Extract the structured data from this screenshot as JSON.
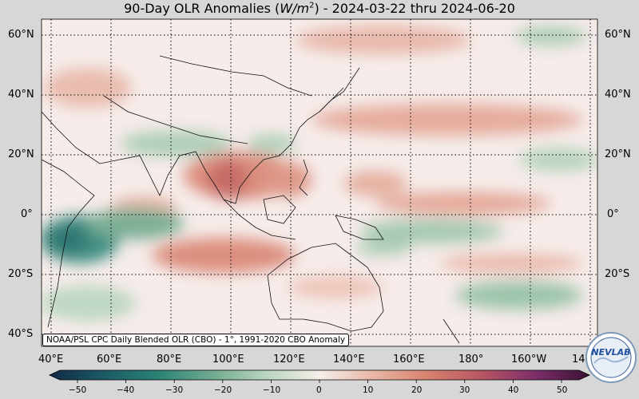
{
  "title": {
    "prefix": "90-Day OLR Anomalies (",
    "unit_base": "W/m",
    "unit_exp": "2",
    "suffix": ") - 2024-03-22 thru 2024-06-20"
  },
  "lat_labels": [
    "60°N",
    "40°N",
    "20°N",
    "0°",
    "20°S",
    "40°S"
  ],
  "lon_labels": [
    "40°E",
    "60°E",
    "80°E",
    "100°E",
    "120°E",
    "140°E",
    "160°E",
    "180°",
    "160°W",
    "14"
  ],
  "credit": "NOAA/PSL CPC Daily Blended OLR (CBO) - 1°, 1991-2020 CBO Anomaly",
  "colorbar": {
    "min": -50,
    "max": 50,
    "ticks": [
      "−50",
      "−40",
      "−30",
      "−20",
      "−10",
      "0",
      "10",
      "20",
      "30",
      "40",
      "50"
    ],
    "colors": [
      "#0f2a45",
      "#1c5a66",
      "#2a8275",
      "#6faa90",
      "#b9d5bf",
      "#f5eeea",
      "#e8b6a4",
      "#d7826e",
      "#b85663",
      "#7c2e6a",
      "#3a1033"
    ]
  },
  "logo": {
    "text": "NEVLAB"
  }
}
